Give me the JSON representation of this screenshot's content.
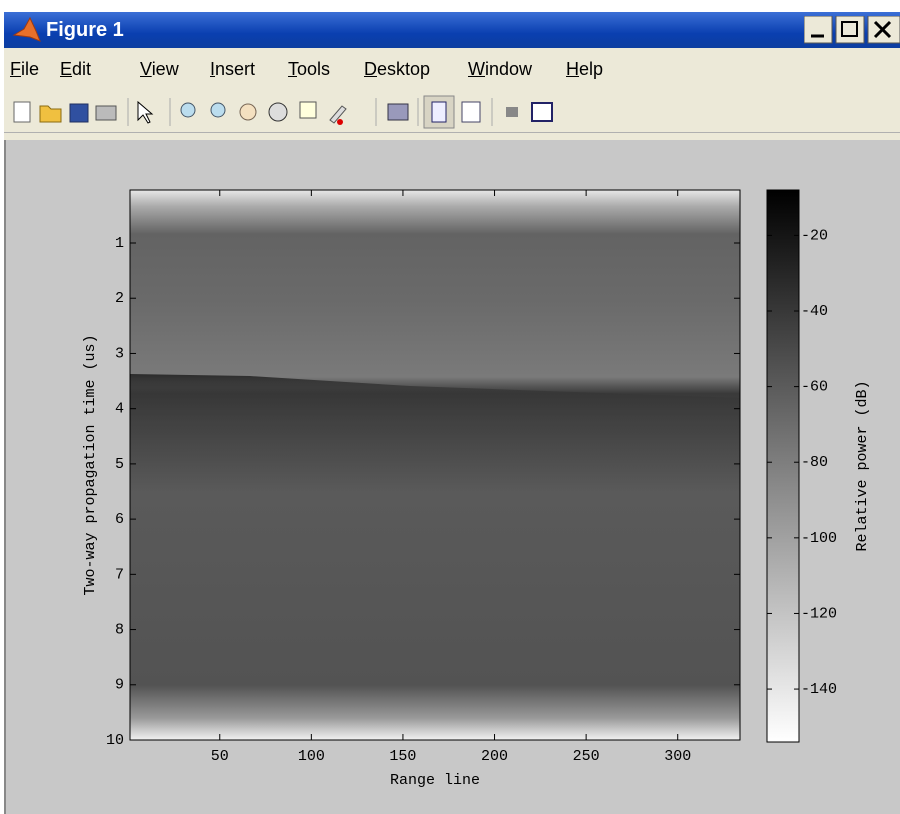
{
  "window": {
    "title": "Figure 1"
  },
  "menu": [
    "File",
    "Edit",
    "View",
    "Insert",
    "Tools",
    "Desktop",
    "Window",
    "Help"
  ],
  "chart_data": {
    "type": "image",
    "xlabel": "Range line",
    "ylabel": "Two-way propagation time (us)",
    "xlim": [
      1,
      334
    ],
    "xticks": [
      50,
      100,
      150,
      200,
      250,
      300
    ],
    "ylim": [
      0.04,
      10
    ],
    "yticks": [
      1,
      2,
      3,
      4,
      5,
      6,
      7,
      8,
      9,
      10
    ],
    "y_reversed": true,
    "colorbar": {
      "label": "Relative power (dB)",
      "lim": [
        -154,
        -8
      ],
      "ticks": [
        -20,
        -40,
        -60,
        -80,
        -100,
        -120,
        -140
      ],
      "colormap": "gray"
    }
  }
}
